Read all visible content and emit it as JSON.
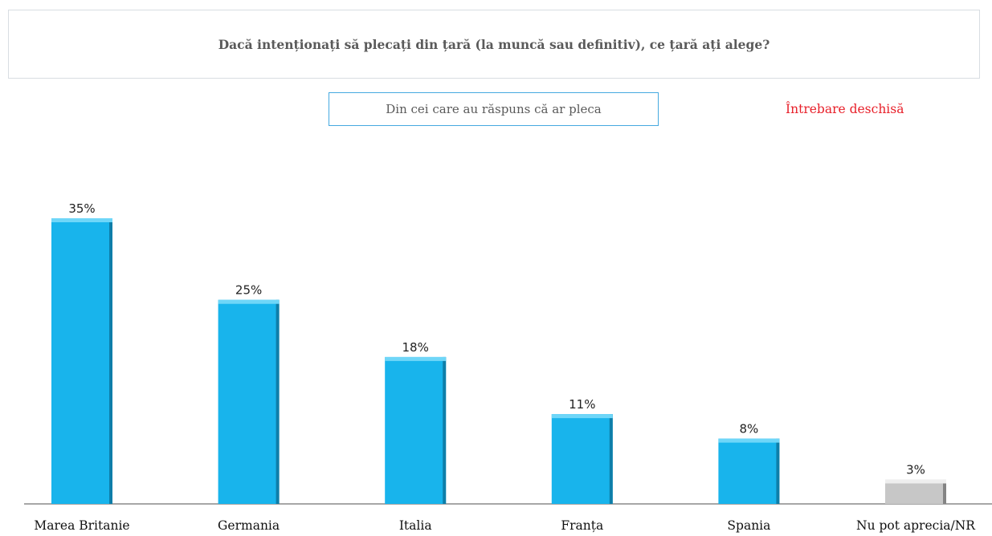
{
  "header": {
    "question": "Dacă intenționați să plecați din țară (la muncă sau definitiv), ce țară ați alege?",
    "subset_note": "Din cei care au răspuns că ar pleca",
    "question_type": "Întrebare deschisă"
  },
  "colors": {
    "bar": "#18b4ec",
    "bar_top": "#6fd6f8",
    "bar_shadow": "#0b6c93",
    "other_bar": "#c7c7c7",
    "other_bar_top": "#eeeeee",
    "other_bar_shadow": "#6e6e6e",
    "subset_border": "#45a9e0",
    "open_question_text": "#e8202a"
  },
  "chart_data": {
    "type": "bar",
    "categories": [
      "Marea Britanie",
      "Germania",
      "Italia",
      "Franța",
      "Spania",
      "Nu pot aprecia/NR"
    ],
    "values": [
      35,
      25,
      18,
      11,
      8,
      3
    ],
    "value_labels": [
      "35%",
      "25%",
      "18%",
      "11%",
      "8%",
      "3%"
    ],
    "unit": "%",
    "ylim": [
      0,
      35
    ],
    "grid": false,
    "legend": "none",
    "highlight_last_category_gray": true
  }
}
